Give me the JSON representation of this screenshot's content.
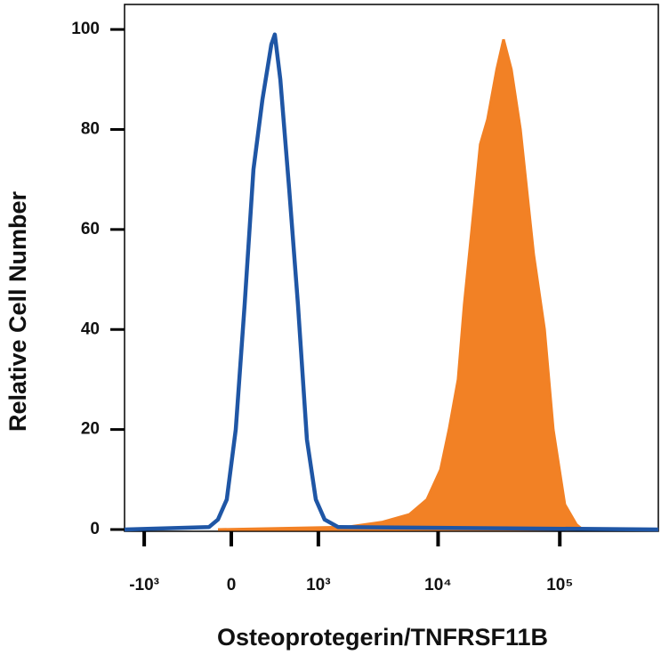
{
  "chart_data": {
    "type": "histogram-overlay",
    "xlabel": "Osteoprotegerin/TNFRSF11B",
    "ylabel": "Relative Cell Number",
    "xscale": "biexponential",
    "xlim": [
      -1480,
      645000
    ],
    "xticks": [
      {
        "value": -1000,
        "label": "-10³"
      },
      0,
      {
        "value": 1000,
        "label": "10³"
      },
      {
        "value": 10000,
        "label": "10⁴"
      },
      {
        "value": 100000,
        "label": "10⁵"
      }
    ],
    "ylim": [
      0,
      105
    ],
    "yticks": [
      0,
      20,
      40,
      60,
      80,
      100
    ],
    "series": [
      {
        "style": "area",
        "color": "#f28125",
        "x": [
          -102,
          1764,
          3484,
          5800,
          8090,
          10480,
          12300,
          14600,
          16400,
          18900,
          22200,
          25500,
          30300,
          34500,
          40000,
          47500,
          61000,
          75000,
          88400,
          110000,
          137000,
          154000
        ],
        "values": [
          0,
          0.5,
          1.5,
          3,
          6,
          12,
          20,
          30,
          45,
          60,
          77,
          82,
          92,
          98,
          92,
          80,
          55,
          40,
          20,
          5,
          1,
          0
        ]
      },
      {
        "style": "line",
        "color": "#1f56a5",
        "x": [
          -1480,
          -173,
          -102,
          -34,
          34,
          102,
          173,
          250,
          333,
          368,
          427,
          532,
          649,
          788,
          950,
          1136,
          1480,
          645000
        ],
        "values": [
          0,
          0.5,
          2,
          6,
          20,
          45,
          72,
          86,
          97,
          99,
          90,
          68,
          45,
          18,
          6,
          2,
          0.5,
          0
        ]
      }
    ]
  }
}
